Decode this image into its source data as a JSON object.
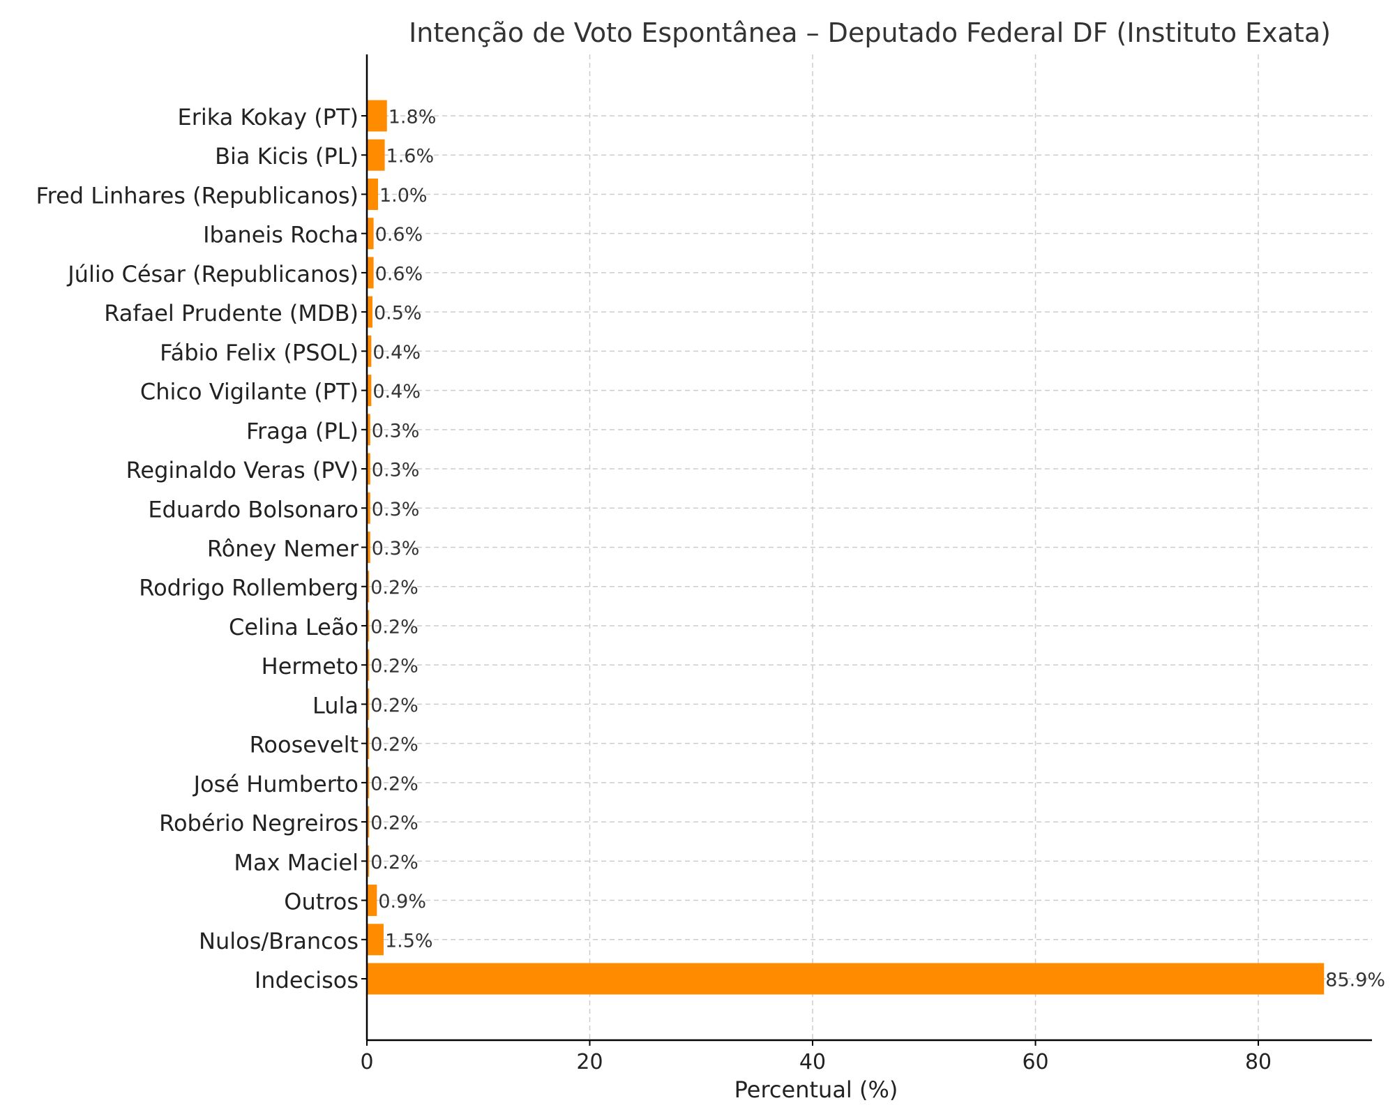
{
  "chart_data": {
    "type": "bar",
    "orientation": "horizontal",
    "title": "Intenção de Voto Espontânea – Deputado Federal DF (Instituto Exata)",
    "xlabel": "Percentual (%)",
    "ylabel": "",
    "xlim": [
      0,
      90.2
    ],
    "xticks": [
      0,
      20,
      40,
      60,
      80
    ],
    "grid": true,
    "bar_color": "#ff8c00",
    "categories": [
      "Erika Kokay (PT)",
      "Bia Kicis (PL)",
      "Fred Linhares (Republicanos)",
      "Ibaneis Rocha",
      "Júlio César (Republicanos)",
      "Rafael Prudente (MDB)",
      "Fábio Felix (PSOL)",
      "Chico Vigilante (PT)",
      "Fraga (PL)",
      "Reginaldo Veras (PV)",
      "Eduardo Bolsonaro",
      "Rôney Nemer",
      "Rodrigo Rollemberg",
      "Celina Leão",
      "Hermeto",
      "Lula",
      "Roosevelt",
      "José Humberto",
      "Robério Negreiros",
      "Max Maciel",
      "Outros",
      "Nulos/Brancos",
      "Indecisos"
    ],
    "values": [
      1.8,
      1.6,
      1.0,
      0.6,
      0.6,
      0.5,
      0.4,
      0.4,
      0.3,
      0.3,
      0.3,
      0.3,
      0.2,
      0.2,
      0.2,
      0.2,
      0.2,
      0.2,
      0.2,
      0.2,
      0.9,
      1.5,
      85.9
    ],
    "data_labels": [
      "1.8%",
      "1.6%",
      "1.0%",
      "0.6%",
      "0.6%",
      "0.5%",
      "0.4%",
      "0.4%",
      "0.3%",
      "0.3%",
      "0.3%",
      "0.3%",
      "0.2%",
      "0.2%",
      "0.2%",
      "0.2%",
      "0.2%",
      "0.2%",
      "0.2%",
      "0.2%",
      "0.9%",
      "1.5%",
      "85.9%"
    ]
  }
}
